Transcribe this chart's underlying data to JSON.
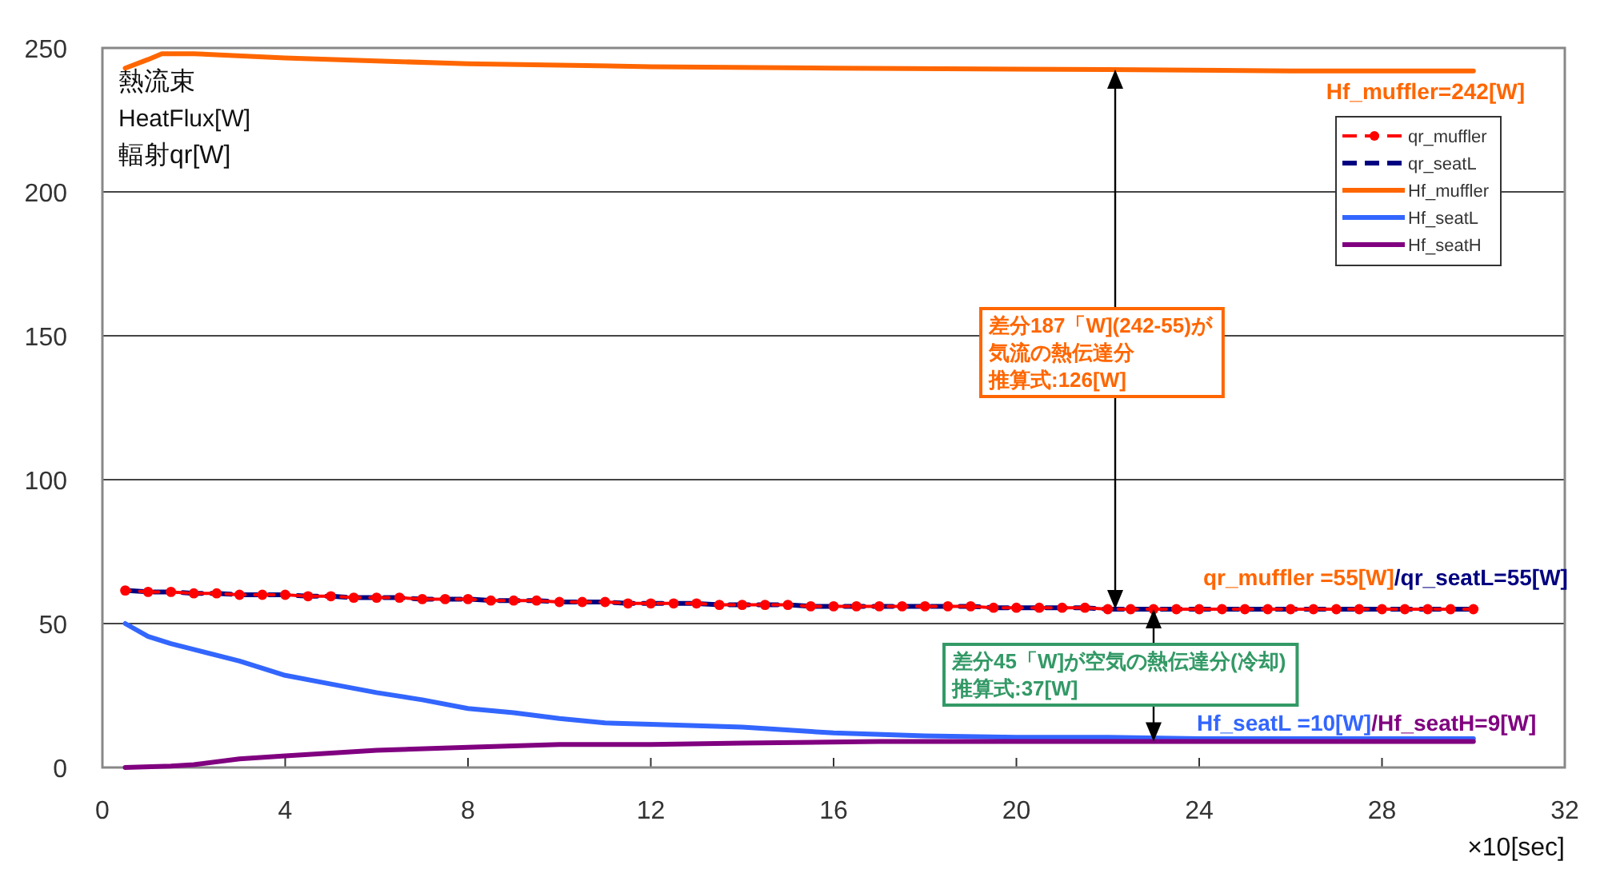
{
  "chart_data": {
    "type": "line",
    "ylabel": "熱流束\nHeatFlux[W]\n輻射qr[W]",
    "xlabel": "×10[sec]",
    "xlim": [
      0,
      32
    ],
    "xticks": [
      0,
      4,
      8,
      12,
      16,
      20,
      24,
      28,
      32
    ],
    "ylim": [
      0,
      250
    ],
    "yticks": [
      0,
      50,
      100,
      150,
      200,
      250
    ],
    "grid": "y",
    "legend": "top right",
    "series": [
      {
        "name": "qr_muffler",
        "color": "#ff0000",
        "marker": "circle",
        "line_style": "dashed",
        "x": [
          0.5,
          1,
          1.5,
          2,
          2.5,
          3,
          3.5,
          4,
          4.5,
          5,
          5.5,
          6,
          6.5,
          7,
          7.5,
          8,
          8.5,
          9,
          9.5,
          10,
          10.5,
          11,
          11.5,
          12,
          12.5,
          13,
          13.5,
          14,
          14.5,
          15,
          15.5,
          16,
          16.5,
          17,
          17.5,
          18,
          18.5,
          19,
          19.5,
          20,
          20.5,
          21,
          21.5,
          22,
          22.5,
          23,
          23.5,
          24,
          24.5,
          25,
          25.5,
          26,
          26.5,
          27,
          27.5,
          28,
          28.5,
          29,
          29.5,
          30
        ],
        "values": [
          61.5,
          61,
          61,
          60.5,
          60.5,
          60,
          60,
          60,
          59.5,
          59.5,
          59,
          59,
          59,
          58.5,
          58.5,
          58.5,
          58,
          58,
          58,
          57.5,
          57.5,
          57.5,
          57,
          57,
          57,
          57,
          56.5,
          56.5,
          56.5,
          56.5,
          56,
          56,
          56,
          56,
          56,
          56,
          56,
          56,
          55.5,
          55.5,
          55.5,
          55.5,
          55.5,
          55,
          55,
          55,
          55,
          55,
          55,
          55,
          55,
          55,
          55,
          55,
          55,
          55,
          55,
          55,
          55,
          55
        ]
      },
      {
        "name": "qr_seatL",
        "color": "#000080",
        "line_style": "dashed",
        "x": [
          0.5,
          1,
          1.5,
          2,
          2.5,
          3,
          3.5,
          4,
          4.5,
          5,
          5.5,
          6,
          6.5,
          7,
          7.5,
          8,
          8.5,
          9,
          9.5,
          10,
          10.5,
          11,
          11.5,
          12,
          12.5,
          13,
          13.5,
          14,
          14.5,
          15,
          15.5,
          16,
          16.5,
          17,
          17.5,
          18,
          18.5,
          19,
          19.5,
          20,
          20.5,
          21,
          21.5,
          22,
          22.5,
          23,
          23.5,
          24,
          24.5,
          25,
          25.5,
          26,
          26.5,
          27,
          27.5,
          28,
          28.5,
          29,
          29.5,
          30
        ],
        "values": [
          61.5,
          61,
          61,
          60.5,
          60.5,
          60,
          60,
          60,
          59.5,
          59.5,
          59,
          59,
          59,
          58.5,
          58.5,
          58.5,
          58,
          58,
          58,
          57.5,
          57.5,
          57.5,
          57,
          57,
          57,
          57,
          56.5,
          56.5,
          56.5,
          56.5,
          56,
          56,
          56,
          56,
          56,
          56,
          56,
          56,
          55.5,
          55.5,
          55.5,
          55.5,
          55.5,
          55,
          55,
          55,
          55,
          55,
          55,
          55,
          55,
          55,
          55,
          55,
          55,
          55,
          55,
          55,
          55,
          55
        ]
      },
      {
        "name": "Hf_muffler",
        "color": "#ff6600",
        "x": [
          0.5,
          1,
          1.3,
          2,
          4,
          6,
          8,
          12,
          16,
          22,
          26,
          30
        ],
        "values": [
          243,
          246,
          248,
          248,
          246.5,
          245.5,
          244.5,
          243.5,
          243,
          242.5,
          242,
          242
        ]
      },
      {
        "name": "Hf_seatL",
        "color": "#3366ff",
        "x": [
          0.5,
          1,
          1.5,
          2,
          3,
          4,
          5,
          6,
          7,
          8,
          9,
          10,
          11,
          12,
          13,
          14,
          16,
          18,
          20,
          22,
          24,
          26,
          28,
          30
        ],
        "values": [
          50,
          45.5,
          43,
          41,
          37,
          32,
          29,
          26,
          23.5,
          20.5,
          19,
          17,
          15.5,
          15,
          14.5,
          14,
          12,
          11,
          10.5,
          10.5,
          10,
          10,
          10,
          10
        ]
      },
      {
        "name": "Hf_seatH",
        "color": "#800080",
        "x": [
          0.5,
          1.5,
          2,
          3,
          4,
          5,
          6,
          8,
          10,
          12,
          14,
          17,
          20,
          30
        ],
        "values": [
          0,
          0.5,
          1,
          3,
          4,
          5,
          6,
          7,
          8,
          8,
          8.5,
          9,
          9,
          9
        ]
      }
    ],
    "annotations": [
      "Hf_muffler=242[W]",
      "qr_muffler =55[W]",
      "/qr_seatL=55[W]",
      "Hf_seatL =10[W]",
      "/Hf_seatH=9[W]",
      "差分187「W](242-55)が",
      "気流の熱伝達分",
      "推算式:126[W]",
      "差分45「W]が空気の熱伝達分(冷却)",
      "推算式:37[W]"
    ]
  }
}
